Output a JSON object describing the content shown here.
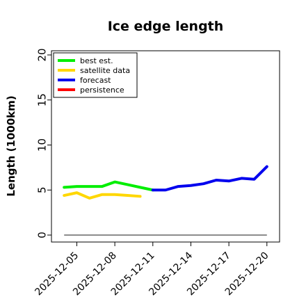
{
  "chart_data": {
    "type": "line",
    "title": "Ice edge length",
    "xlabel": "",
    "ylabel": "Length (1000km)",
    "ylim": [
      0,
      20
    ],
    "yticks": [
      0,
      5,
      10,
      15,
      20
    ],
    "xlim": [
      "2025-12-03",
      "2025-12-21"
    ],
    "xticks": [
      "2025-12-05",
      "2025-12-08",
      "2025-12-11",
      "2025-12-14",
      "2025-12-17",
      "2025-12-20"
    ],
    "highlight_tick": "2025-12-11",
    "highlight_color": "#228B22",
    "legend_position": "top-left",
    "series": [
      {
        "name": "best est.",
        "color": "#00ee00",
        "x": [
          "2025-12-04",
          "2025-12-05",
          "2025-12-06",
          "2025-12-07",
          "2025-12-08",
          "2025-12-09",
          "2025-12-10",
          "2025-12-11"
        ],
        "values": [
          5.3,
          5.4,
          5.4,
          5.4,
          5.9,
          5.6,
          5.3,
          5.0
        ]
      },
      {
        "name": "satellite data",
        "color": "#ffd700",
        "x": [
          "2025-12-04",
          "2025-12-05",
          "2025-12-06",
          "2025-12-07",
          "2025-12-08",
          "2025-12-09",
          "2025-12-10"
        ],
        "values": [
          4.4,
          4.7,
          4.1,
          4.5,
          4.5,
          4.4,
          4.3
        ]
      },
      {
        "name": "forecast",
        "color": "#0000ee",
        "x": [
          "2025-12-11",
          "2025-12-12",
          "2025-12-13",
          "2025-12-14",
          "2025-12-15",
          "2025-12-16",
          "2025-12-17",
          "2025-12-18",
          "2025-12-19",
          "2025-12-20"
        ],
        "values": [
          5.0,
          5.0,
          5.4,
          5.5,
          5.7,
          6.1,
          6.0,
          6.3,
          6.2,
          7.6
        ]
      },
      {
        "name": "persistence",
        "color": "#ff0000",
        "x": [],
        "values": []
      }
    ],
    "baseline": {
      "color": "#666666",
      "x": [
        "2025-12-04",
        "2025-12-20"
      ],
      "values": [
        0,
        0
      ]
    }
  }
}
